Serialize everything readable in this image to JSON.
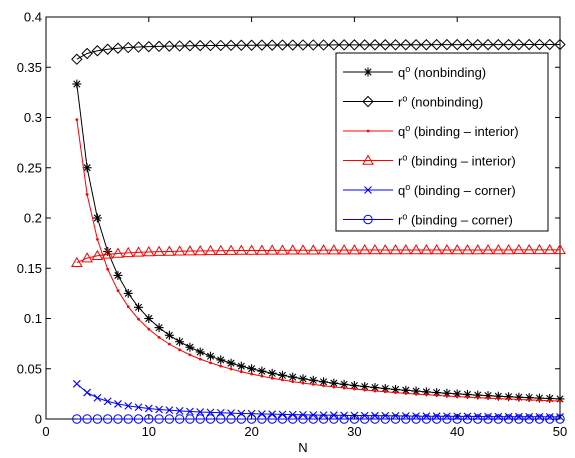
{
  "chart_data": {
    "type": "line",
    "title": "",
    "xlabel": "N",
    "ylabel": "",
    "xlim": [
      0,
      50
    ],
    "ylim": [
      0,
      0.4
    ],
    "xticks": [
      0,
      10,
      20,
      30,
      40,
      50
    ],
    "xtick_labels": [
      "0",
      "10",
      "20",
      "30",
      "40",
      "50"
    ],
    "yticks": [
      0,
      0.05,
      0.1,
      0.15,
      0.2,
      0.25,
      0.3,
      0.35,
      0.4
    ],
    "ytick_labels": [
      "0",
      "0.05",
      "0.1",
      "0.15",
      "0.2",
      "0.25",
      "0.3",
      "0.35",
      "0.4"
    ],
    "grid": false,
    "legend_position": "top-right",
    "x": [
      3,
      4,
      5,
      6,
      7,
      8,
      9,
      10,
      11,
      12,
      13,
      14,
      15,
      16,
      17,
      18,
      19,
      20,
      21,
      22,
      23,
      24,
      25,
      26,
      27,
      28,
      29,
      30,
      31,
      32,
      33,
      34,
      35,
      36,
      37,
      38,
      39,
      40,
      41,
      42,
      43,
      44,
      45,
      46,
      47,
      48,
      49,
      50
    ],
    "series": [
      {
        "name": "qᴼ (nonbinding)",
        "legend_base": "q",
        "legend_sup": "o",
        "legend_rest": " (nonbinding)",
        "color": "#000000",
        "marker": "asterisk",
        "values": [
          0.3333,
          0.25,
          0.2,
          0.1667,
          0.1429,
          0.125,
          0.1111,
          0.1,
          0.0909,
          0.0833,
          0.0769,
          0.0714,
          0.0667,
          0.0625,
          0.0588,
          0.0556,
          0.0526,
          0.05,
          0.0476,
          0.0455,
          0.0435,
          0.0417,
          0.04,
          0.0385,
          0.037,
          0.0357,
          0.0345,
          0.0333,
          0.0323,
          0.0313,
          0.0303,
          0.0294,
          0.0286,
          0.0278,
          0.027,
          0.0263,
          0.0256,
          0.025,
          0.0244,
          0.0238,
          0.0233,
          0.0227,
          0.0222,
          0.0217,
          0.0213,
          0.0208,
          0.0204,
          0.02
        ]
      },
      {
        "name": "rᴼ (nonbinding)",
        "legend_base": "r",
        "legend_sup": "o",
        "legend_rest": " (nonbinding)",
        "color": "#000000",
        "marker": "diamond",
        "values": [
          0.358,
          0.3637,
          0.3664,
          0.3679,
          0.3689,
          0.3696,
          0.3701,
          0.3705,
          0.3708,
          0.371,
          0.3712,
          0.3714,
          0.3715,
          0.3716,
          0.3717,
          0.3718,
          0.3719,
          0.3719,
          0.372,
          0.372,
          0.3721,
          0.3721,
          0.3722,
          0.3722,
          0.3722,
          0.3723,
          0.3723,
          0.3723,
          0.3723,
          0.3724,
          0.3724,
          0.3724,
          0.3724,
          0.3724,
          0.3724,
          0.3725,
          0.3725,
          0.3725,
          0.3725,
          0.3725,
          0.3725,
          0.3725,
          0.3725,
          0.3725,
          0.3726,
          0.3726,
          0.3726,
          0.3726
        ]
      },
      {
        "name": "qᴼ (binding – interior)",
        "legend_base": "q",
        "legend_sup": "o",
        "legend_rest": " (binding – interior)",
        "color": "#ff0000",
        "marker": "dot",
        "values": [
          0.2979,
          0.2234,
          0.1787,
          0.149,
          0.1277,
          0.1117,
          0.0993,
          0.0894,
          0.0812,
          0.0745,
          0.0688,
          0.0638,
          0.0596,
          0.0559,
          0.0526,
          0.0497,
          0.047,
          0.0447,
          0.0426,
          0.0406,
          0.0389,
          0.0372,
          0.0357,
          0.0344,
          0.0331,
          0.0319,
          0.0308,
          0.0298,
          0.0288,
          0.0279,
          0.0271,
          0.0263,
          0.0255,
          0.0248,
          0.0242,
          0.0235,
          0.0229,
          0.0223,
          0.0218,
          0.0213,
          0.0208,
          0.0203,
          0.0199,
          0.0194,
          0.019,
          0.0186,
          0.0182,
          0.0179
        ]
      },
      {
        "name": "rᴼ (binding – interior)",
        "legend_base": "r",
        "legend_sup": "o",
        "legend_rest": " (binding – interior)",
        "color": "#ff0000",
        "marker": "triangle",
        "values": [
          0.1555,
          0.1601,
          0.1624,
          0.1638,
          0.1647,
          0.1653,
          0.1658,
          0.1662,
          0.1665,
          0.1667,
          0.1669,
          0.1671,
          0.1672,
          0.1673,
          0.1674,
          0.1675,
          0.1676,
          0.1677,
          0.1677,
          0.1678,
          0.1678,
          0.1679,
          0.1679,
          0.1679,
          0.168,
          0.168,
          0.168,
          0.168,
          0.1681,
          0.1681,
          0.1681,
          0.1681,
          0.1681,
          0.1681,
          0.1682,
          0.1682,
          0.1682,
          0.1682,
          0.1682,
          0.1682,
          0.1682,
          0.1682,
          0.1682,
          0.1683,
          0.1683,
          0.1683,
          0.1683,
          0.1683
        ]
      },
      {
        "name": "qᴼ (binding – corner)",
        "legend_base": "q",
        "legend_sup": "o",
        "legend_rest": " (binding – corner)",
        "color": "#0000ff",
        "marker": "x",
        "values": [
          0.035,
          0.0263,
          0.021,
          0.0175,
          0.015,
          0.0131,
          0.0117,
          0.0105,
          0.0095,
          0.0088,
          0.0081,
          0.0075,
          0.007,
          0.0066,
          0.0062,
          0.0058,
          0.0055,
          0.0053,
          0.005,
          0.0048,
          0.0046,
          0.0044,
          0.0042,
          0.004,
          0.0039,
          0.0038,
          0.0036,
          0.0035,
          0.0034,
          0.0033,
          0.0032,
          0.0031,
          0.003,
          0.0029,
          0.0028,
          0.0028,
          0.0027,
          0.0026,
          0.0026,
          0.0025,
          0.0024,
          0.0024,
          0.0023,
          0.0023,
          0.0022,
          0.0022,
          0.0021,
          0.0021
        ]
      },
      {
        "name": "rᴼ (binding – corner)",
        "legend_base": "r",
        "legend_sup": "o",
        "legend_rest": " (binding – corner)",
        "color": "#0000ff",
        "marker": "circle",
        "values": [
          0,
          0,
          0,
          0,
          0,
          0,
          0,
          0,
          0,
          0,
          0,
          0,
          0,
          0,
          0,
          0,
          0,
          0,
          0,
          0,
          0,
          0,
          0,
          0,
          0,
          0,
          0,
          0,
          0,
          0,
          0,
          0,
          0,
          0,
          0,
          0,
          0,
          0,
          0,
          0,
          0,
          0,
          0,
          0,
          0,
          0,
          0,
          0
        ]
      }
    ]
  }
}
